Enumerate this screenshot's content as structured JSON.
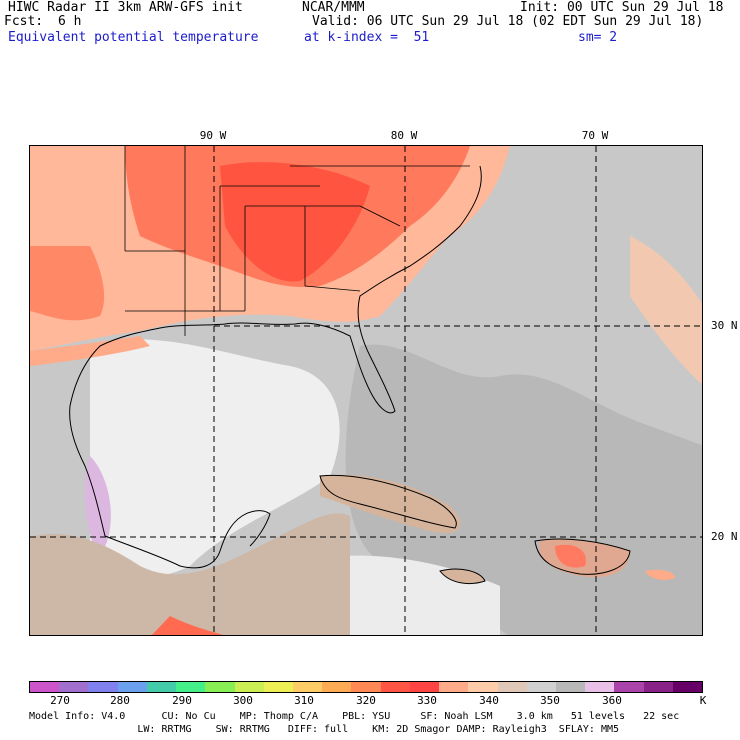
{
  "header": {
    "title": "HIWC Radar II 3km ARW-GFS init",
    "org": "NCAR/MMM",
    "init": "Init: 00 UTC Sun 29 Jul 18",
    "fcst_label": "Fcst:",
    "fcst_value": "6 h",
    "valid": "Valid: 06 UTC Sun 29 Jul 18 (02 EDT Sun 29 Jul 18)",
    "field": "Equivalent potential temperature",
    "level": "at k-index =  51",
    "smooth": "sm= 2"
  },
  "map": {
    "lon_labels": [
      "90 W",
      "80 W",
      "70 W"
    ],
    "lat_labels": [
      "30 N",
      "20 N"
    ]
  },
  "colorbar": {
    "colors": [
      "#cc55cc",
      "#a070cc",
      "#8080ee",
      "#6aa0ee",
      "#44ccaa",
      "#44ee88",
      "#88ee55",
      "#ccee55",
      "#eeee55",
      "#ffcc66",
      "#ffaa55",
      "#ff8855",
      "#ff5544",
      "#ff4444",
      "#ffaa88",
      "#ffccaa",
      "#e0c8b8",
      "#d0d0d0",
      "#b8b8b8",
      "#e8c0e8",
      "#aa44aa",
      "#882288",
      "#660066"
    ],
    "ticks": [
      "270",
      "280",
      "290",
      "300",
      "310",
      "320",
      "330",
      "340",
      "350",
      "360"
    ],
    "unit": "K"
  },
  "footer": {
    "line1": "Model Info: V4.0      CU: No Cu    MP: Thomp C/A    PBL: YSU     SF: Noah LSM    3.0 km   51 levels   22 sec",
    "line2": "                  LW: RRTMG    SW: RRTMG   DIFF: full    KM: 2D Smagor DAMP: Rayleigh3  SFLAY: MM5"
  }
}
